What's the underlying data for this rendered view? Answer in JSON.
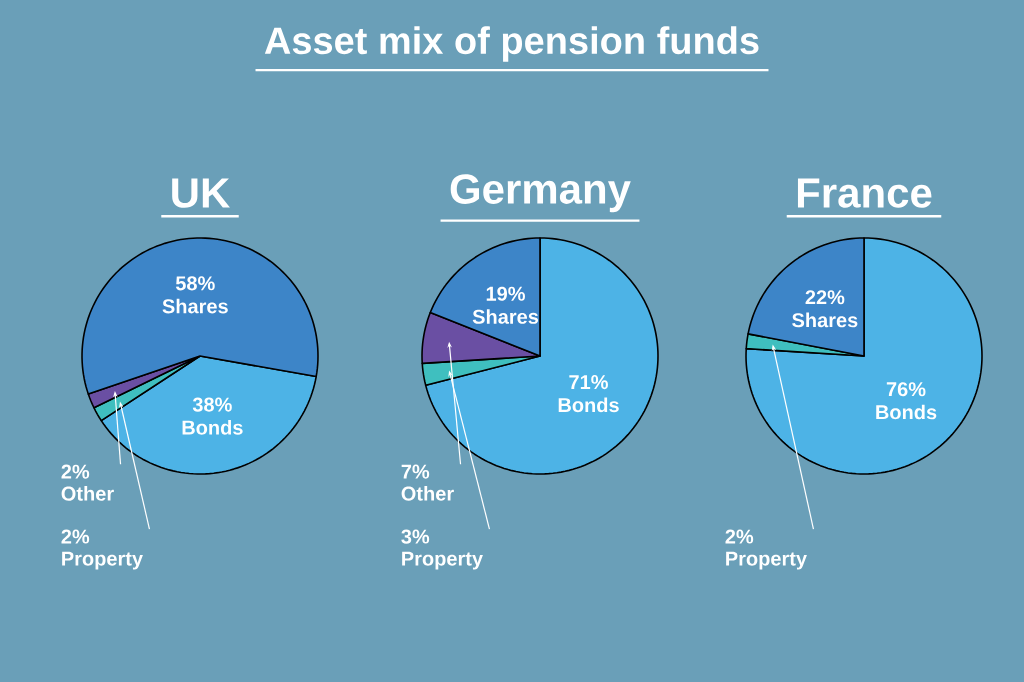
{
  "chart_data": [
    {
      "type": "other",
      "title": "Asset mix of pension funds"
    },
    {
      "type": "pie",
      "title": "UK",
      "categories": [
        "Bonds",
        "Property",
        "Other",
        "Shares"
      ],
      "values": [
        38,
        2,
        2,
        58
      ],
      "value_labels": [
        "38%",
        "2%",
        "2%",
        "58%"
      ],
      "colors": [
        "#4db3e6",
        "#3fbfbf",
        "#6a4fa3",
        "#3d85c8"
      ]
    },
    {
      "type": "pie",
      "title": "Germany",
      "categories": [
        "Bonds",
        "Property",
        "Other",
        "Shares"
      ],
      "values": [
        71,
        3,
        7,
        19
      ],
      "value_labels": [
        "71%",
        "3%",
        "7%",
        "19%"
      ],
      "colors": [
        "#4db3e6",
        "#3fbfbf",
        "#6a4fa3",
        "#3d85c8"
      ]
    },
    {
      "type": "pie",
      "title": "France",
      "categories": [
        "Bonds",
        "Property",
        "Shares"
      ],
      "values": [
        76,
        2,
        22
      ],
      "value_labels": [
        "76%",
        "2%",
        "22%"
      ],
      "colors": [
        "#4db3e6",
        "#3fbfbf",
        "#3d85c8"
      ]
    }
  ]
}
